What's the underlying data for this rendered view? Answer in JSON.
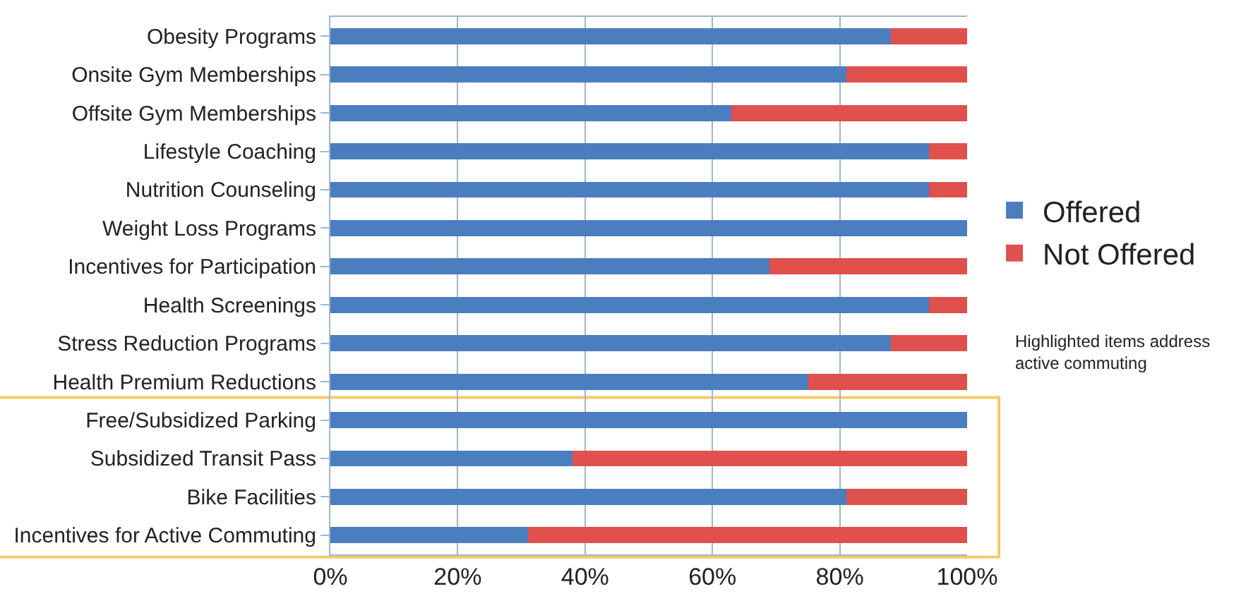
{
  "chart_data": {
    "type": "bar",
    "orientation": "horizontal",
    "stacked": true,
    "categories": [
      "Obesity Programs",
      "Onsite Gym Memberships",
      "Offsite Gym Memberships",
      "Lifestyle Coaching",
      "Nutrition Counseling",
      "Weight Loss Programs",
      "Incentives for Participation",
      "Health Screenings",
      "Stress Reduction Programs",
      "Health Premium Reductions",
      "Free/Subsidized Parking",
      "Subsidized Transit Pass",
      "Bike Facilities",
      "Incentives for Active Commuting"
    ],
    "series": [
      {
        "name": "Offered",
        "color": "#4a7ebf",
        "values": [
          88,
          81,
          63,
          94,
          94,
          100,
          69,
          94,
          88,
          75,
          100,
          38,
          81,
          31
        ]
      },
      {
        "name": "Not Offered",
        "color": "#e0504d",
        "values": [
          12,
          19,
          37,
          6,
          6,
          0,
          31,
          6,
          12,
          25,
          0,
          62,
          19,
          69
        ]
      }
    ],
    "xlim": [
      0,
      100
    ],
    "xticks": [
      {
        "value": 0,
        "label": "0%"
      },
      {
        "value": 20,
        "label": "20%"
      },
      {
        "value": 40,
        "label": "40%"
      },
      {
        "value": 60,
        "label": "60%"
      },
      {
        "value": 80,
        "label": "80%"
      },
      {
        "value": 100,
        "label": "100%"
      }
    ],
    "grid": "x",
    "legend": "right",
    "annotations": [
      "Highlighted items address active commuting"
    ]
  }
}
